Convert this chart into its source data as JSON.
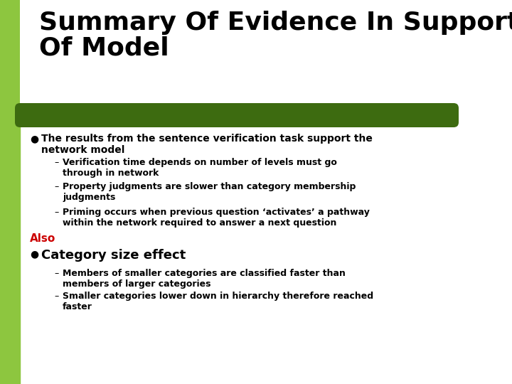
{
  "title_line1": "Summary Of Evidence In Support",
  "title_line2": "Of Model",
  "bg_color": "#ffffff",
  "left_bar_color": "#8dc63f",
  "top_block_color": "#8dc63f",
  "dark_green_bar_color": "#3d6b10",
  "title_color": "#000000",
  "title_fontsize": 26,
  "bullet_color": "#000000",
  "also_color": "#cc0000",
  "bullet1": "The results from the sentence verification task support the\nnetwork model",
  "sub_bullets1": [
    "Verification time depends on number of levels must go\nthrough in network",
    "Property judgments are slower than category membership\njudgments",
    "Priming occurs when previous question ‘activates’ a pathway\nwithin the network required to answer a next question"
  ],
  "also_label": "Also",
  "bullet2": "Category size effect",
  "sub_bullets2": [
    "Members of smaller categories are classified faster than\nmembers of larger categories",
    "Smaller categories lower down in hierarchy therefore reached\nfaster"
  ]
}
